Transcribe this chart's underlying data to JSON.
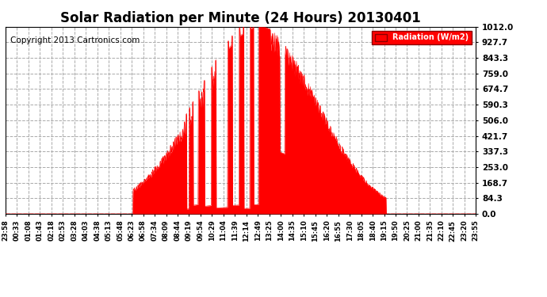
{
  "title": "Solar Radiation per Minute (24 Hours) 20130401",
  "copyright_text": "Copyright 2013 Cartronics.com",
  "legend_label": "Radiation (W/m2)",
  "yticks": [
    0.0,
    84.3,
    168.7,
    253.0,
    337.3,
    421.7,
    506.0,
    590.3,
    674.7,
    759.0,
    843.3,
    927.7,
    1012.0
  ],
  "ylim": [
    0.0,
    1012.0
  ],
  "bar_color": "#ff0000",
  "fill_color": "#ff0000",
  "background_color": "#ffffff",
  "grid_color": "#aaaaaa",
  "title_fontsize": 12,
  "copyright_fontsize": 7.5,
  "xtick_labels": [
    "23:58",
    "00:33",
    "01:08",
    "01:43",
    "02:18",
    "02:53",
    "03:28",
    "04:03",
    "04:38",
    "05:13",
    "05:48",
    "06:23",
    "06:58",
    "07:34",
    "08:09",
    "08:44",
    "09:19",
    "09:54",
    "10:29",
    "11:04",
    "11:39",
    "12:14",
    "12:49",
    "13:25",
    "14:00",
    "14:35",
    "15:10",
    "15:45",
    "16:20",
    "16:55",
    "17:30",
    "18:05",
    "18:40",
    "19:15",
    "19:50",
    "20:25",
    "21:00",
    "21:35",
    "22:10",
    "22:45",
    "23:20",
    "23:55"
  ],
  "sunrise_min": 390,
  "sunset_min": 1165,
  "peak_min": 780,
  "peak_value": 1012.0,
  "n_minutes": 1440
}
